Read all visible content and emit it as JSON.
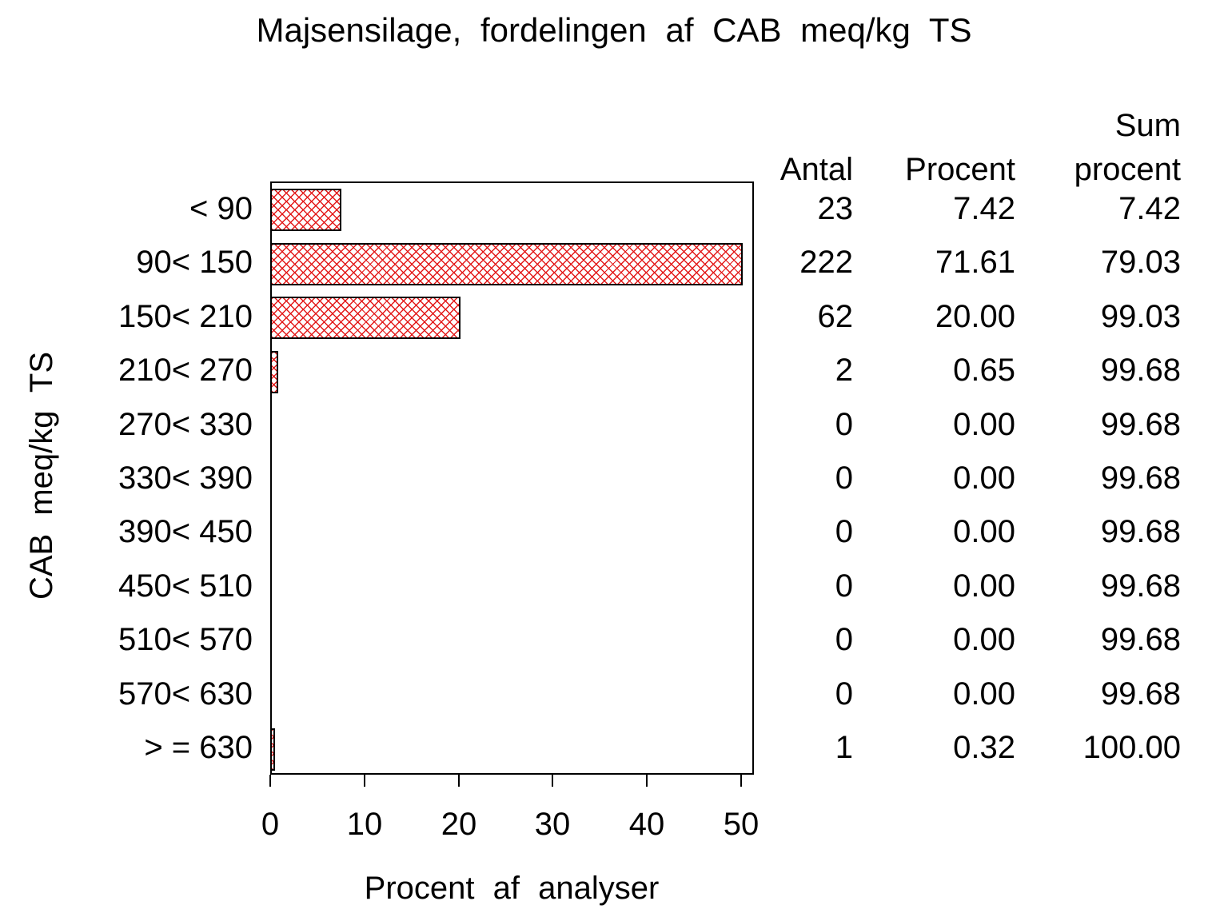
{
  "title": "Majsensilage, fordelingen af CAB meq/kg TS",
  "chart_data": {
    "type": "bar",
    "orientation": "horizontal",
    "title": "Majsensilage, fordelingen af CAB meq/kg TS",
    "categories": [
      "< 90",
      "90< 150",
      "150< 210",
      "210< 270",
      "270< 330",
      "330< 390",
      "390< 450",
      "450< 510",
      "510< 570",
      "570< 630",
      "> = 630"
    ],
    "series": [
      {
        "name": "Procent",
        "values": [
          7.42,
          71.61,
          20.0,
          0.65,
          0,
          0,
          0,
          0,
          0,
          0,
          0.32
        ]
      },
      {
        "name": "Antal",
        "values": [
          23,
          222,
          62,
          2,
          0,
          0,
          0,
          0,
          0,
          0,
          1
        ]
      },
      {
        "name": "Sum procent",
        "values": [
          7.42,
          79.03,
          99.03,
          99.68,
          99.68,
          99.68,
          99.68,
          99.68,
          99.68,
          99.68,
          100.0
        ]
      }
    ],
    "xlabel": "Procent af analyser",
    "ylabel": "CAB meq/kg TS",
    "xlim": [
      0,
      50
    ],
    "xticks": [
      "0",
      "10",
      "20",
      "30",
      "40",
      "50"
    ],
    "grid": false,
    "legend": "none",
    "bar_color": "#e31a1a",
    "bar_pattern": "crosshatch",
    "frame_color": "#000000",
    "background_color": "#ffffff",
    "note": "Bar for 90< 150 (71.61%) is clipped at axis maximum 50"
  },
  "table": {
    "col1_header": "Antal",
    "col2_header": "Procent",
    "col3_header_line1": "Sum",
    "col3_header_line2": "procent",
    "rows": [
      [
        "23",
        "7.42",
        "7.42"
      ],
      [
        "222",
        "71.61",
        "79.03"
      ],
      [
        "62",
        "20.00",
        "99.03"
      ],
      [
        "2",
        "0.65",
        "99.68"
      ],
      [
        "0",
        "0.00",
        "99.68"
      ],
      [
        "0",
        "0.00",
        "99.68"
      ],
      [
        "0",
        "0.00",
        "99.68"
      ],
      [
        "0",
        "0.00",
        "99.68"
      ],
      [
        "0",
        "0.00",
        "99.68"
      ],
      [
        "0",
        "0.00",
        "99.68"
      ],
      [
        "1",
        "0.32",
        "100.00"
      ]
    ]
  }
}
